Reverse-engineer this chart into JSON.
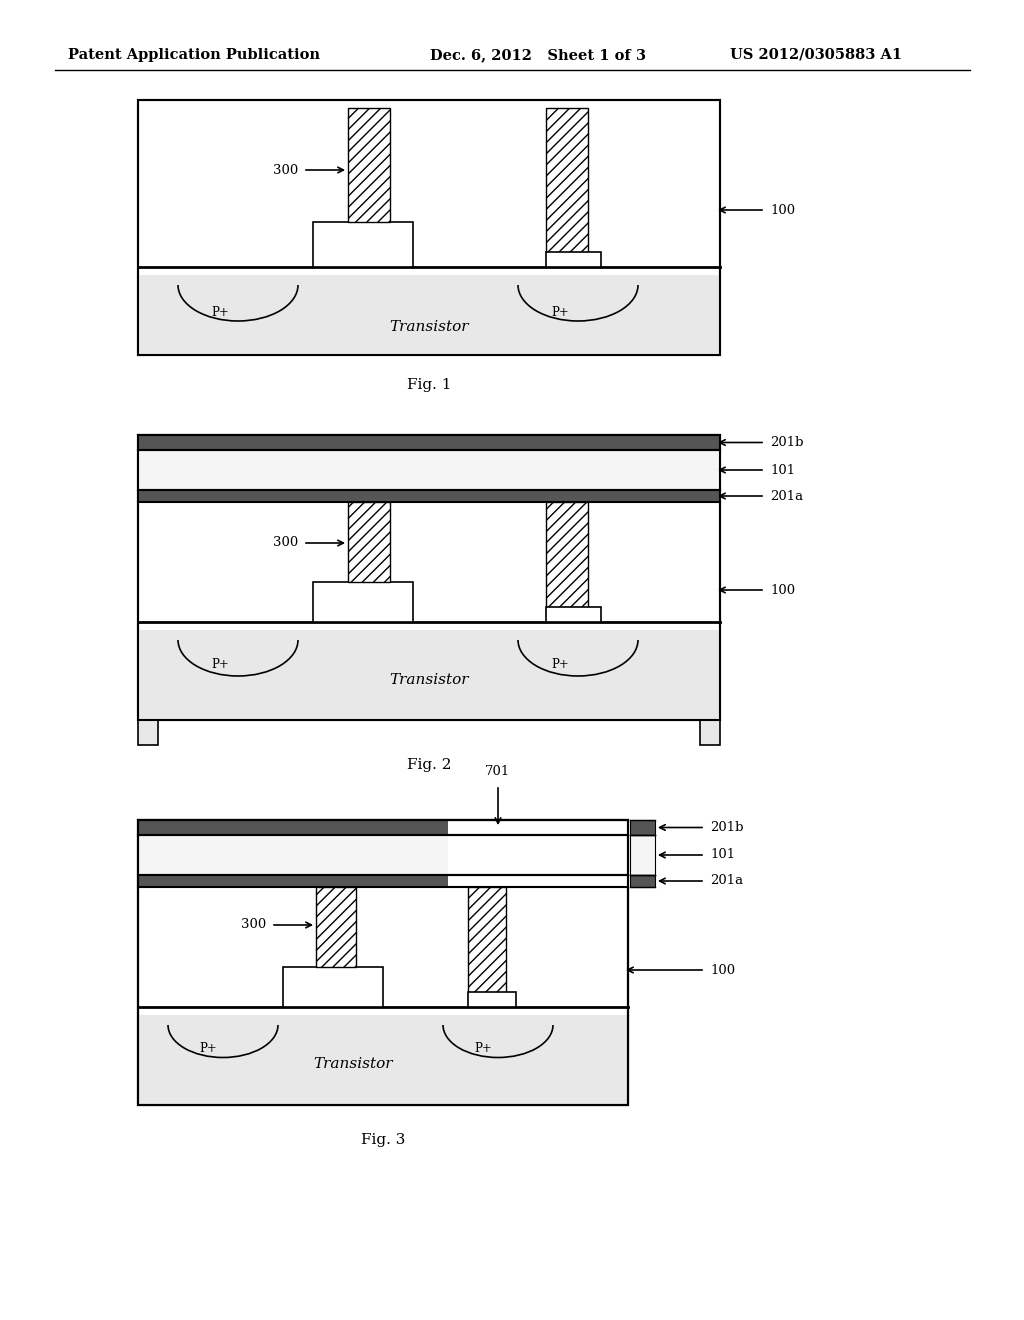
{
  "bg_color": "#ffffff",
  "header_left": "Patent Application Publication",
  "header_mid": "Dec. 6, 2012   Sheet 1 of 3",
  "header_right": "US 2012/0305883 A1",
  "fig1_label": "Fig. 1",
  "fig2_label": "Fig. 2",
  "fig3_label": "Fig. 3"
}
